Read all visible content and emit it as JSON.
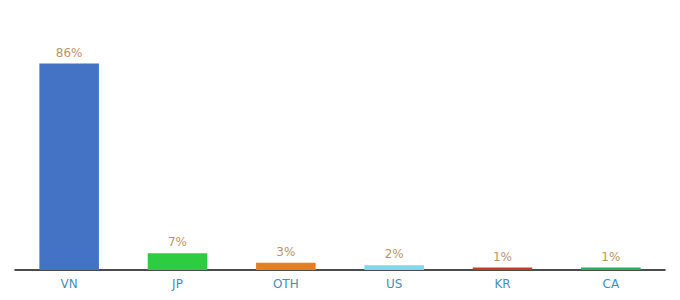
{
  "chart_data": {
    "type": "bar",
    "categories": [
      "VN",
      "JP",
      "OTH",
      "US",
      "KR",
      "CA"
    ],
    "values": [
      86,
      7,
      3,
      2,
      1,
      1
    ],
    "value_labels": [
      "86%",
      "7%",
      "3%",
      "2%",
      "1%",
      "1%"
    ],
    "colors": [
      "#4472c4",
      "#2ecc40",
      "#e67e22",
      "#7fd8e8",
      "#c0392b",
      "#27ae60"
    ],
    "ylim": [
      0,
      100
    ],
    "data_labels": true,
    "tick_labels": "x",
    "grid": false
  }
}
